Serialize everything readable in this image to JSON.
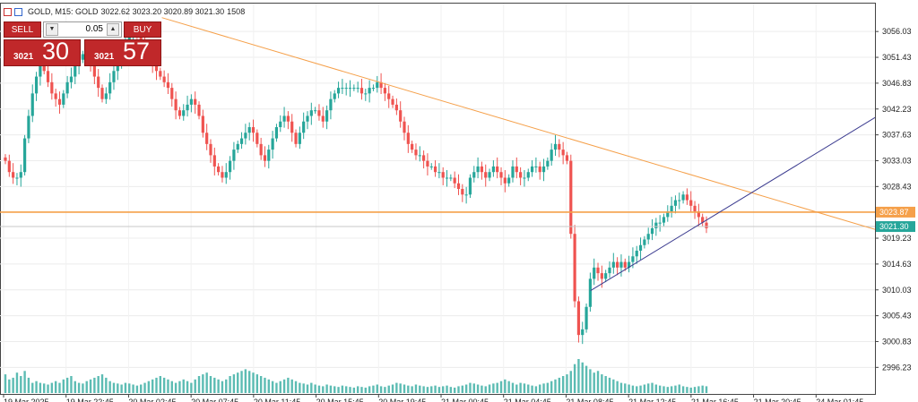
{
  "header": {
    "symbol": "GOLD, M15: GOLD",
    "ohlc": "3022.62 3023.20 3020.89 3021.30",
    "volume": "1508"
  },
  "trade_panel": {
    "sell_label": "SELL",
    "buy_label": "BUY",
    "lot_value": "0.05",
    "sell_price_small": "3021",
    "sell_price_big": "30",
    "buy_price_small": "3021",
    "buy_price_big": "57",
    "button_color": "#c0282a"
  },
  "colors": {
    "bull": "#26a69a",
    "bear": "#ef5350",
    "volume": "#26a69a",
    "trendline_upper": "#f5a04a",
    "trendline_lower": "#3b3b8f",
    "level_line": "#f5a04a",
    "current_price_label": "#26a69a"
  },
  "chart_data": {
    "type": "candlestick",
    "symbol": "GOLD",
    "timeframe": "M15",
    "ylim": [
      2991.5,
      3061.0
    ],
    "y_ticks": [
      "3056.03",
      "3051.43",
      "3046.83",
      "3042.23",
      "3037.63",
      "3033.03",
      "3028.43",
      "3019.23",
      "3014.63",
      "3010.03",
      "3005.43",
      "3000.83",
      "2996.23"
    ],
    "x_ticks": [
      "19 Mar 2025",
      "19 Mar 22:45",
      "20 Mar 02:45",
      "20 Mar 07:45",
      "20 Mar 11:45",
      "20 Mar 15:45",
      "20 Mar 19:45",
      "21 Mar 00:45",
      "21 Mar 04:45",
      "21 Mar 08:45",
      "21 Mar 12:45",
      "21 Mar 16:45",
      "21 Mar 20:45",
      "24 Mar 01:45"
    ],
    "level_price": "3023.87",
    "current_price": "3021.30",
    "close_series": [
      3033,
      3031,
      3030,
      3030,
      3031,
      3037,
      3041,
      3045,
      3048,
      3050,
      3049,
      3047,
      3045,
      3044,
      3043,
      3045,
      3047,
      3048,
      3050,
      3051,
      3052,
      3051,
      3050,
      3048,
      3046,
      3044,
      3045,
      3047,
      3049,
      3050,
      3052,
      3054,
      3055,
      3056,
      3055,
      3054,
      3053,
      3051,
      3050,
      3049,
      3048,
      3047,
      3046,
      3044,
      3042,
      3041,
      3042,
      3043,
      3044,
      3043,
      3041,
      3038,
      3036,
      3034,
      3032,
      3031,
      3030,
      3031,
      3033,
      3035,
      3036,
      3037,
      3038,
      3039,
      3038,
      3036,
      3034,
      3033,
      3035,
      3037,
      3039,
      3040,
      3041,
      3040,
      3038,
      3036,
      3038,
      3040,
      3041,
      3042,
      3042,
      3041,
      3040,
      3042,
      3044,
      3045,
      3046,
      3046,
      3046,
      3046,
      3046,
      3046,
      3045,
      3045,
      3046,
      3046,
      3047,
      3046,
      3045,
      3044,
      3043,
      3042,
      3040,
      3038,
      3036,
      3035,
      3034,
      3034,
      3033,
      3032,
      3032,
      3031,
      3031,
      3030,
      3030,
      3030,
      3029,
      3028,
      3027,
      3027,
      3030,
      3031,
      3032,
      3031,
      3030,
      3031,
      3032,
      3031,
      3030,
      3029,
      3030,
      3032,
      3031,
      3030,
      3030,
      3031,
      3032,
      3032,
      3031,
      3032,
      3033,
      3035,
      3036,
      3035,
      3034,
      3033,
      3020,
      3008,
      3002,
      3003,
      3007,
      3012,
      3014,
      3013,
      3012,
      3013,
      3014,
      3015,
      3014,
      3015,
      3014,
      3015,
      3016,
      3017,
      3018,
      3019,
      3020,
      3021,
      3022,
      3022,
      3023,
      3024,
      3025,
      3026,
      3026,
      3027,
      3026,
      3025,
      3024,
      3023,
      3022,
      3021
    ],
    "volume_series": [
      0.55,
      0.4,
      0.45,
      0.6,
      0.5,
      0.65,
      0.45,
      0.3,
      0.35,
      0.3,
      0.28,
      0.25,
      0.3,
      0.35,
      0.3,
      0.4,
      0.45,
      0.5,
      0.35,
      0.3,
      0.28,
      0.35,
      0.4,
      0.45,
      0.5,
      0.55,
      0.45,
      0.35,
      0.3,
      0.28,
      0.25,
      0.3,
      0.28,
      0.25,
      0.22,
      0.25,
      0.3,
      0.35,
      0.4,
      0.45,
      0.5,
      0.45,
      0.4,
      0.35,
      0.3,
      0.35,
      0.4,
      0.35,
      0.3,
      0.4,
      0.5,
      0.55,
      0.6,
      0.5,
      0.45,
      0.4,
      0.35,
      0.4,
      0.5,
      0.55,
      0.6,
      0.65,
      0.7,
      0.65,
      0.6,
      0.55,
      0.5,
      0.45,
      0.4,
      0.35,
      0.3,
      0.35,
      0.4,
      0.45,
      0.4,
      0.35,
      0.3,
      0.28,
      0.25,
      0.3,
      0.25,
      0.22,
      0.2,
      0.25,
      0.22,
      0.2,
      0.18,
      0.22,
      0.2,
      0.18,
      0.16,
      0.2,
      0.18,
      0.16,
      0.2,
      0.22,
      0.25,
      0.2,
      0.18,
      0.22,
      0.25,
      0.3,
      0.28,
      0.25,
      0.22,
      0.2,
      0.25,
      0.22,
      0.2,
      0.18,
      0.2,
      0.22,
      0.18,
      0.2,
      0.22,
      0.18,
      0.16,
      0.2,
      0.22,
      0.25,
      0.3,
      0.28,
      0.25,
      0.22,
      0.2,
      0.25,
      0.28,
      0.3,
      0.35,
      0.4,
      0.35,
      0.3,
      0.25,
      0.3,
      0.28,
      0.25,
      0.22,
      0.2,
      0.25,
      0.28,
      0.3,
      0.35,
      0.4,
      0.45,
      0.5,
      0.55,
      0.65,
      0.85,
      1.0,
      0.9,
      0.8,
      0.7,
      0.6,
      0.65,
      0.55,
      0.5,
      0.45,
      0.4,
      0.35,
      0.3,
      0.28,
      0.25,
      0.22,
      0.2,
      0.22,
      0.25,
      0.28,
      0.3,
      0.25,
      0.22,
      0.2,
      0.18,
      0.2,
      0.22,
      0.25,
      0.2,
      0.18,
      0.16,
      0.18,
      0.2,
      0.22,
      0.2
    ],
    "upper_trendline": [
      {
        "x": 0.185,
        "p": 3058.5
      },
      {
        "x": 1.0,
        "p": 3020.8
      }
    ],
    "lower_trendline": [
      {
        "x": 0.675,
        "p": 3009.9
      },
      {
        "x": 1.0,
        "p": 3040.7
      }
    ]
  }
}
